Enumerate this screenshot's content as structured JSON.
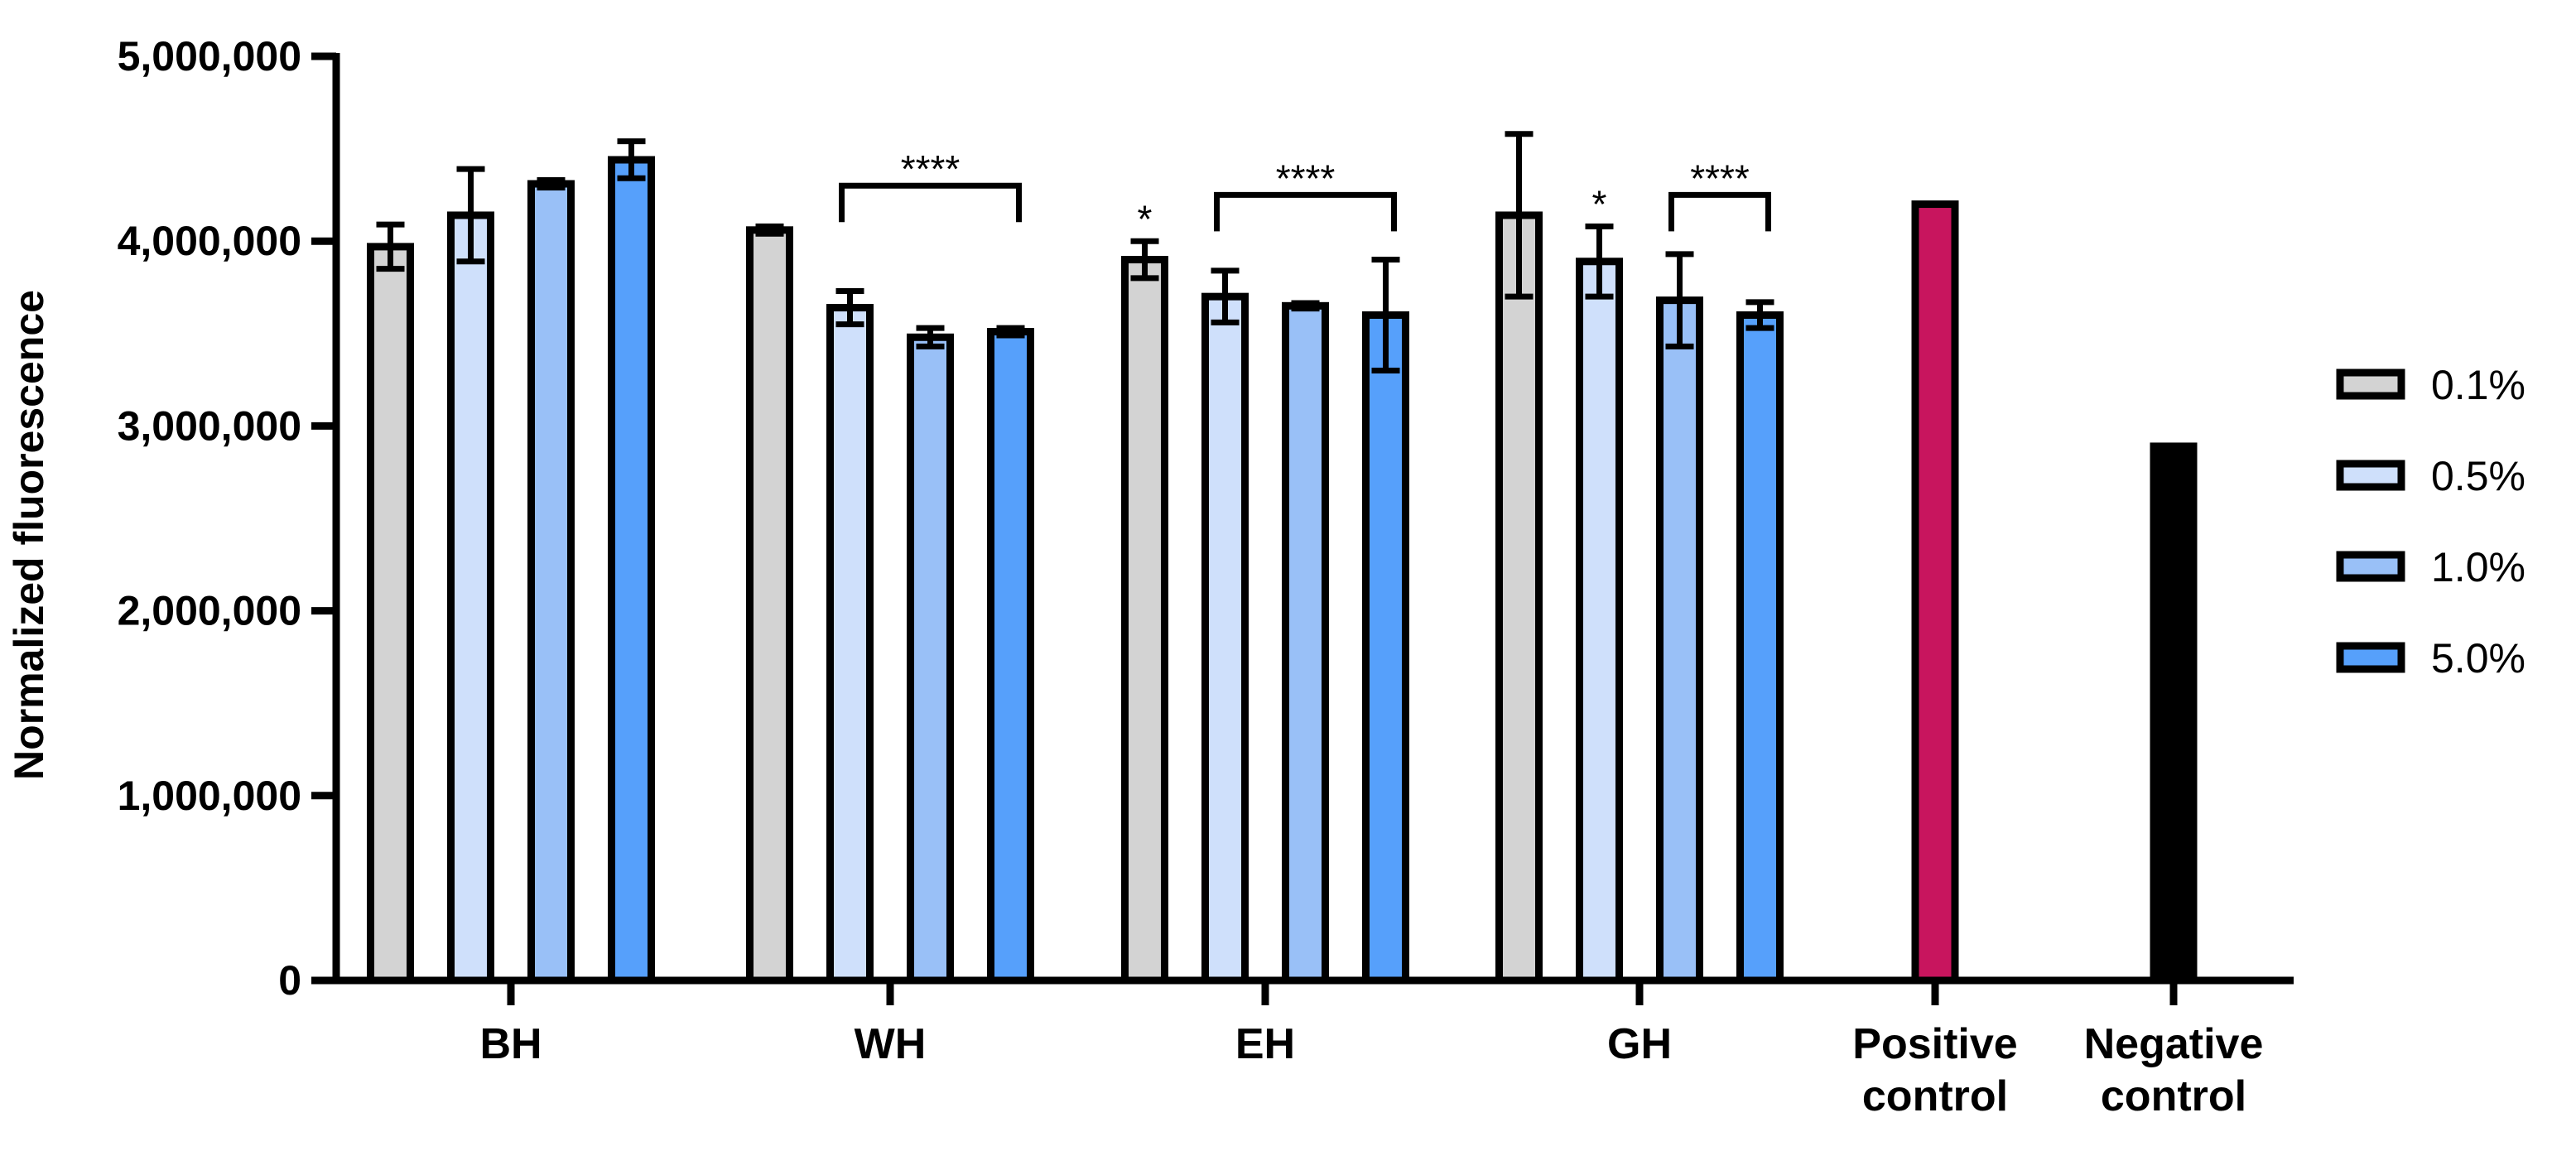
{
  "chart_data": {
    "type": "bar",
    "title": "",
    "ylabel": "Normalized fluorescence",
    "xlabel": "",
    "ylim": [
      0,
      5000000
    ],
    "yticks": [
      0,
      1000000,
      2000000,
      3000000,
      4000000,
      5000000
    ],
    "ytick_labels": [
      "0",
      "1,000,000",
      "2,000,000",
      "3,000,000",
      "4,000,000",
      "5,000,000"
    ],
    "grid": false,
    "legend_position": "right",
    "series": [
      {
        "name": "0.1%",
        "color": "#d3d3d3"
      },
      {
        "name": "0.5%",
        "color": "#cfe0fb"
      },
      {
        "name": "1.0%",
        "color": "#99c0f7"
      },
      {
        "name": "5.0%",
        "color": "#56a0fb"
      }
    ],
    "groups": [
      {
        "label": [
          "BH"
        ],
        "bars": [
          {
            "series": 0,
            "value": 3970000,
            "err": 120000
          },
          {
            "series": 1,
            "value": 4140000,
            "err": 250000
          },
          {
            "series": 2,
            "value": 4310000,
            "err": 20000
          },
          {
            "series": 3,
            "value": 4440000,
            "err": 100000
          }
        ]
      },
      {
        "label": [
          "WH"
        ],
        "bars": [
          {
            "series": 0,
            "value": 4060000,
            "err": 20000
          },
          {
            "series": 1,
            "value": 3640000,
            "err": 90000
          },
          {
            "series": 2,
            "value": 3480000,
            "err": 50000
          },
          {
            "series": 3,
            "value": 3510000,
            "err": 20000
          }
        ]
      },
      {
        "label": [
          "EH"
        ],
        "bars": [
          {
            "series": 0,
            "value": 3900000,
            "err": 100000
          },
          {
            "series": 1,
            "value": 3700000,
            "err": 140000
          },
          {
            "series": 2,
            "value": 3650000,
            "err": 15000
          },
          {
            "series": 3,
            "value": 3600000,
            "err": 300000
          }
        ]
      },
      {
        "label": [
          "GH"
        ],
        "bars": [
          {
            "series": 0,
            "value": 4140000,
            "err": 440000
          },
          {
            "series": 1,
            "value": 3890000,
            "err": 190000
          },
          {
            "series": 2,
            "value": 3680000,
            "err": 250000
          },
          {
            "series": 3,
            "value": 3600000,
            "err": 70000
          }
        ]
      },
      {
        "label": [
          "Positive",
          "control"
        ],
        "bars": [
          {
            "value": 4200000,
            "color": "#c8155e"
          }
        ]
      },
      {
        "label": [
          "Negative",
          "control"
        ],
        "bars": [
          {
            "value": 2890000,
            "color": "#000000"
          }
        ]
      }
    ],
    "annotations": [
      {
        "text": "****",
        "type": "bracket",
        "group": 1,
        "from_bar": 1,
        "to_bar": 3,
        "y": 4300000
      },
      {
        "text": "*",
        "type": "star",
        "group": 2,
        "bar": 0,
        "y": 4120000
      },
      {
        "text": "****",
        "type": "bracket",
        "group": 2,
        "from_bar": 1,
        "to_bar": 3,
        "y": 4250000
      },
      {
        "text": "*",
        "type": "star",
        "group": 3,
        "bar": 1,
        "y": 4200000
      },
      {
        "text": "****",
        "type": "bracket",
        "group": 3,
        "from_bar": 2,
        "to_bar": 3,
        "y": 4250000
      }
    ]
  }
}
